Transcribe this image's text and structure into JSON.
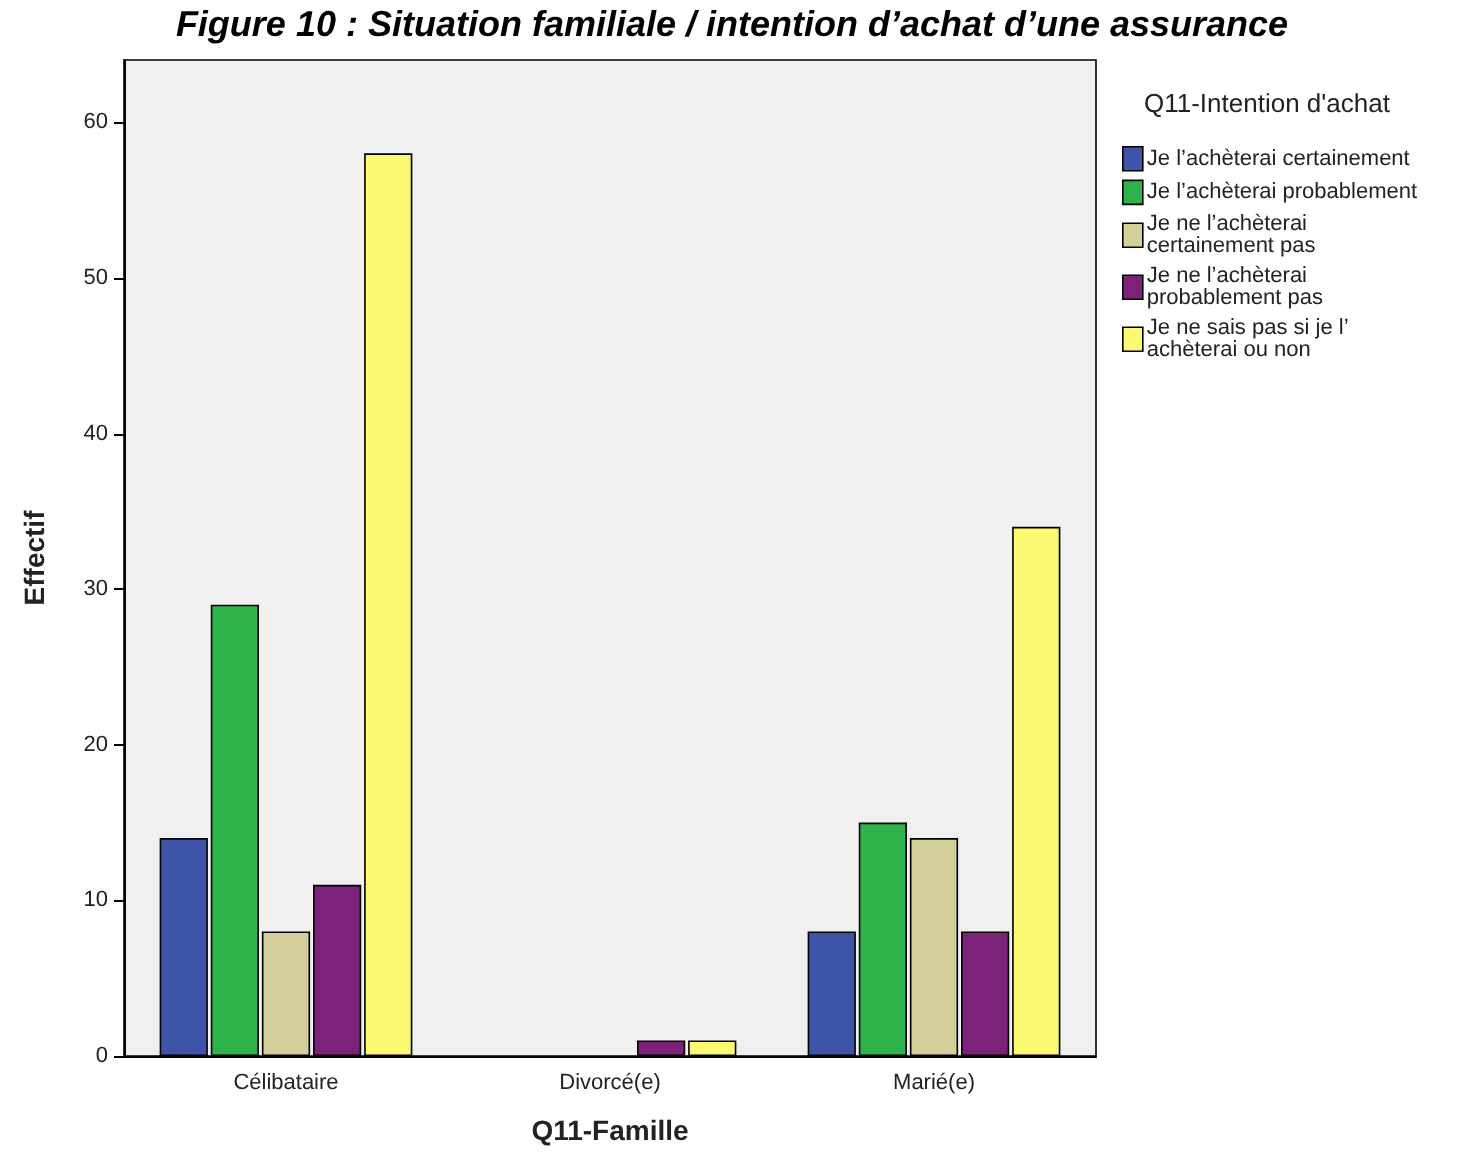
{
  "chart_data": {
    "type": "bar",
    "title": "Figure 10 : Situation familiale / intention d’achat d’une assurance",
    "xlabel": "Q11-Famille",
    "ylabel": "Effectif",
    "legend_title": "Q11-Intention d'achat",
    "categories": [
      "Célibataire",
      "Divorcé(e)",
      "Marié(e)"
    ],
    "series": [
      {
        "name": "Je l’achèterai certainement",
        "color": "#3d54a8",
        "values": [
          14,
          0,
          8
        ]
      },
      {
        "name": "Je l’achèterai probablement",
        "color": "#2fb24a",
        "values": [
          29,
          0,
          15
        ]
      },
      {
        "name": "Je ne l’achèterai certainement pas",
        "color": "#d5cf9b",
        "values": [
          8,
          0,
          14
        ]
      },
      {
        "name": "Je ne l’achèterai probablement pas",
        "color": "#7b2378",
        "values": [
          11,
          1,
          8
        ]
      },
      {
        "name": "Je ne sais pas si je l’ achèterai ou non",
        "color": "#fbf872",
        "values": [
          58,
          1,
          34
        ]
      }
    ],
    "ylim": [
      0,
      64
    ],
    "yticks": [
      0,
      10,
      20,
      30,
      40,
      50,
      60
    ],
    "grid": false,
    "legend": "right"
  }
}
